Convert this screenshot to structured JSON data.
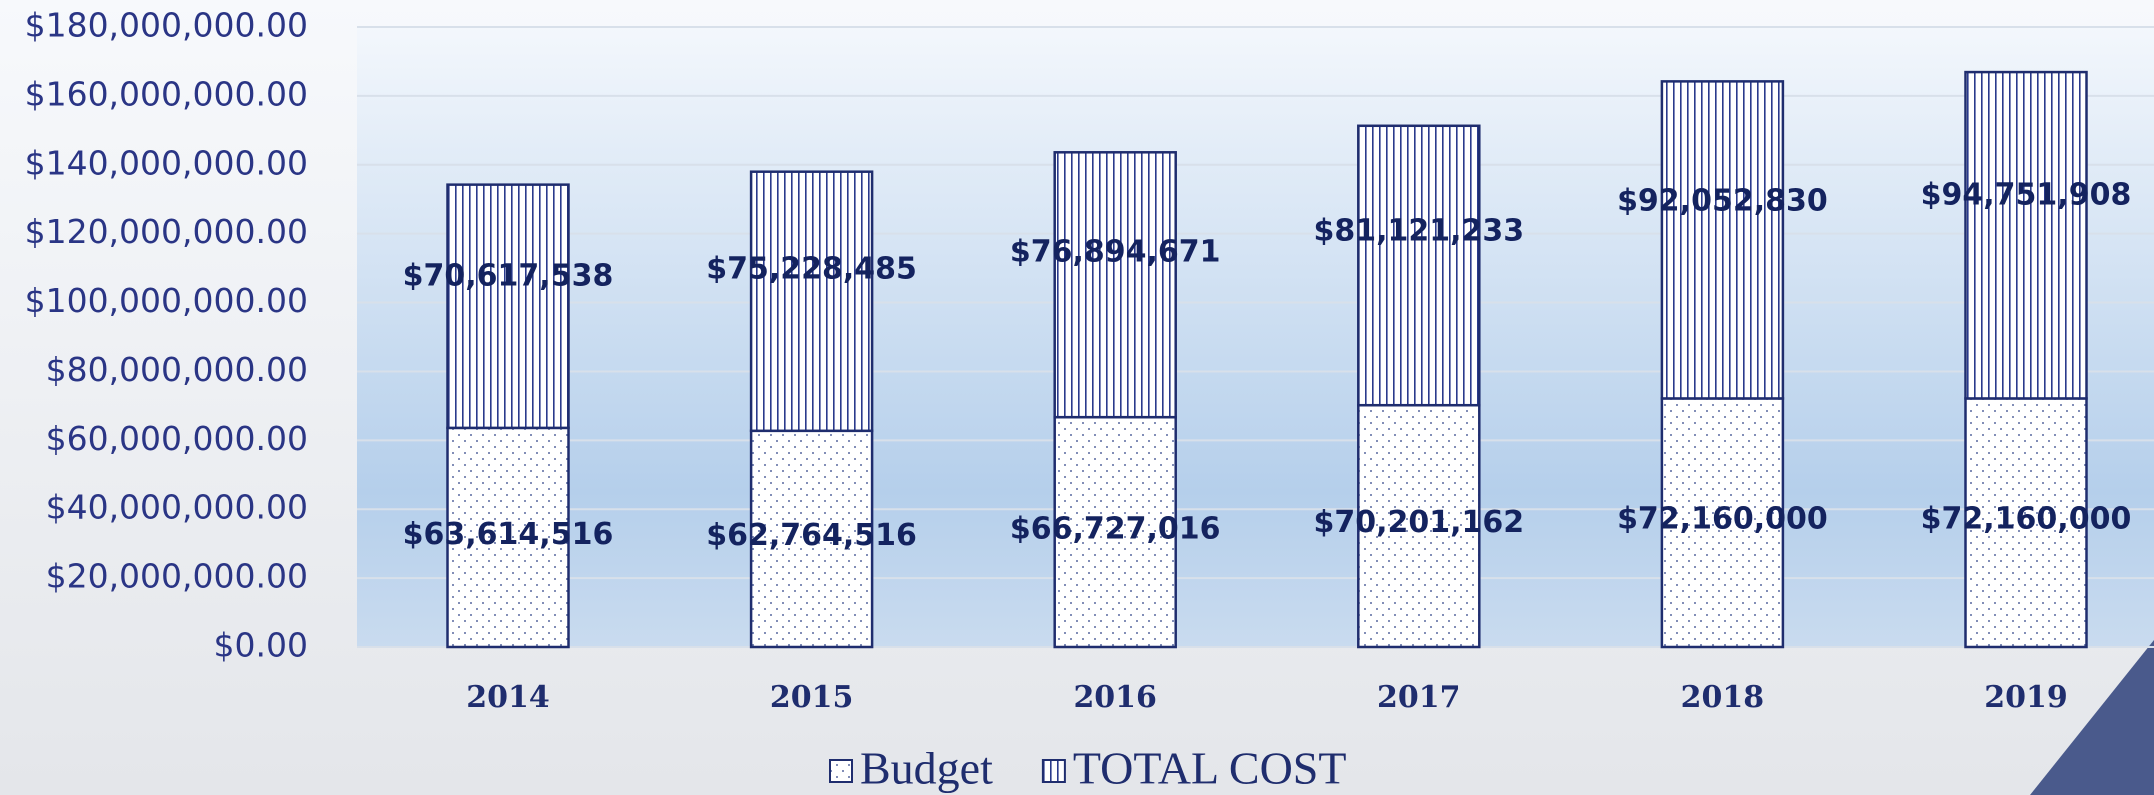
{
  "chart_data": {
    "type": "stacked_bar",
    "categories": [
      "2014",
      "2015",
      "2016",
      "2017",
      "2018",
      "2019"
    ],
    "series": [
      {
        "name": "Budget",
        "color": "#1f2d6e",
        "values": [
          63614516,
          62764516,
          66727016,
          70201162,
          72160000,
          72160000
        ],
        "value_labels": [
          "$63,614,516",
          "$62,764,516",
          "$66,727,016",
          "$70,201,162",
          "$72,160,000",
          "$72,160,000"
        ]
      },
      {
        "name": "TOTAL COST",
        "color": "#1f2d6e",
        "values": [
          70617538,
          75228485,
          76894671,
          81121233,
          92052830,
          94751908
        ],
        "value_labels": [
          "$70,617,538",
          "$75,228,485",
          "$76,894,671",
          "$81,121,233",
          "$92,052,830",
          "$94,751,908"
        ]
      }
    ],
    "ylim": [
      0,
      180000000
    ],
    "yticks": [
      {
        "value": 0,
        "label": "$0.00"
      },
      {
        "value": 20000000,
        "label": "$20,000,000.00"
      },
      {
        "value": 40000000,
        "label": "$40,000,000.00"
      },
      {
        "value": 60000000,
        "label": "$60,000,000.00"
      },
      {
        "value": 80000000,
        "label": "$80,000,000.00"
      },
      {
        "value": 100000000,
        "label": "$100,000,000.00"
      },
      {
        "value": 120000000,
        "label": "$120,000,000.00"
      },
      {
        "value": 140000000,
        "label": "$140,000,000.00"
      },
      {
        "value": 160000000,
        "label": "$160,000,000.00"
      },
      {
        "value": 180000000,
        "label": "$180,000,000.00"
      }
    ],
    "grid": true,
    "legend": "bottom"
  }
}
